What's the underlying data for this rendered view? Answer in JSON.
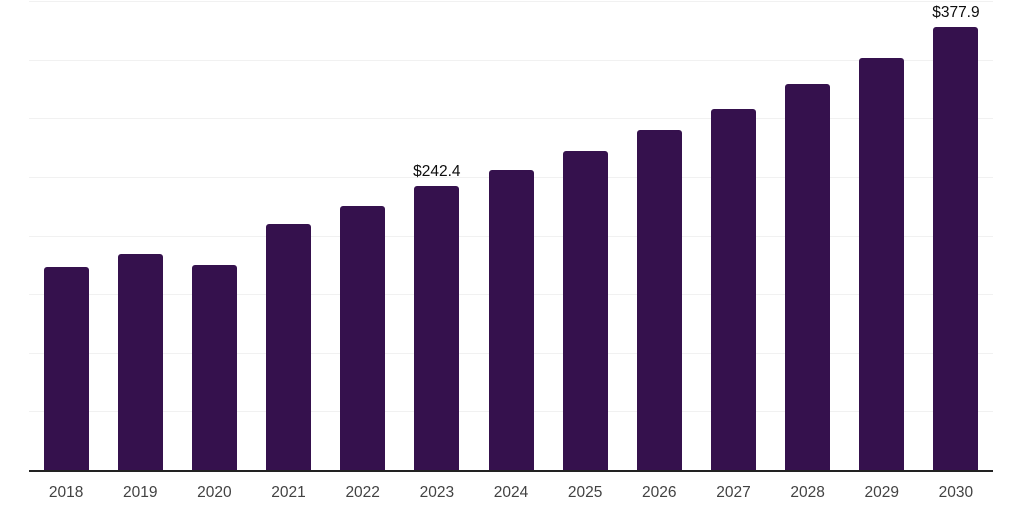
{
  "colors": {
    "bar": "#35114d",
    "axis_line": "#222222",
    "gridline": "#f1f1f1",
    "tick_label": "#424242",
    "value_label": "#0d0d0d",
    "background": "#ffffff"
  },
  "chart_data": {
    "type": "bar",
    "title": "",
    "xlabel": "",
    "ylabel": "",
    "categories": [
      "2018",
      "2019",
      "2020",
      "2021",
      "2022",
      "2023",
      "2024",
      "2025",
      "2026",
      "2027",
      "2028",
      "2029",
      "2030"
    ],
    "values": [
      173.0,
      184.2,
      174.9,
      209.6,
      225.2,
      242.4,
      255.9,
      272.1,
      290.0,
      307.9,
      329.2,
      351.8,
      377.9
    ],
    "data_labels": [
      "",
      "",
      "",
      "",
      "",
      "$242.4",
      "",
      "",
      "",
      "",
      "",
      "",
      "$377.9"
    ],
    "ylim": [
      0,
      400
    ],
    "grid_interval": 50,
    "grid": "horizontal",
    "legend": "none",
    "y_axis_labels_visible": false,
    "currency_unit": "$"
  }
}
